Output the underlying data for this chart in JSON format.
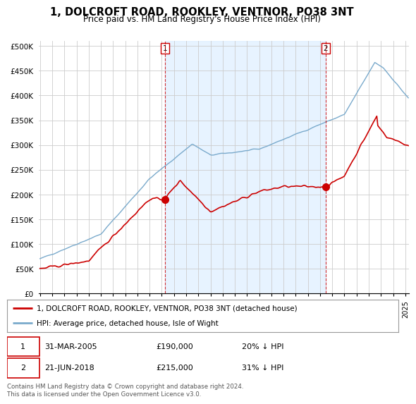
{
  "title": "1, DOLCROFT ROAD, ROOKLEY, VENTNOR, PO38 3NT",
  "subtitle": "Price paid vs. HM Land Registry's House Price Index (HPI)",
  "title_fontsize": 10.5,
  "subtitle_fontsize": 8.5,
  "ylabel_ticks": [
    "£0",
    "£50K",
    "£100K",
    "£150K",
    "£200K",
    "£250K",
    "£300K",
    "£350K",
    "£400K",
    "£450K",
    "£500K"
  ],
  "ytick_values": [
    0,
    50000,
    100000,
    150000,
    200000,
    250000,
    300000,
    350000,
    400000,
    450000,
    500000
  ],
  "ylim": [
    0,
    510000
  ],
  "xlim_start": 1994.9,
  "xlim_end": 2025.3,
  "legend_entries": [
    "1, DOLCROFT ROAD, ROOKLEY, VENTNOR, PO38 3NT (detached house)",
    "HPI: Average price, detached house, Isle of Wight"
  ],
  "legend_colors": [
    "#cc0000",
    "#7aaacc"
  ],
  "sale1_x": 2005.25,
  "sale1_y": 190000,
  "sale1_label": "1",
  "sale2_x": 2018.47,
  "sale2_y": 215000,
  "sale2_label": "2",
  "footer": "Contains HM Land Registry data © Crown copyright and database right 2024.\nThis data is licensed under the Open Government Licence v3.0.",
  "background_color": "#ffffff",
  "grid_color": "#cccccc",
  "red_line_color": "#cc0000",
  "blue_line_color": "#7aaacc",
  "shade_color": "#ddeeff"
}
